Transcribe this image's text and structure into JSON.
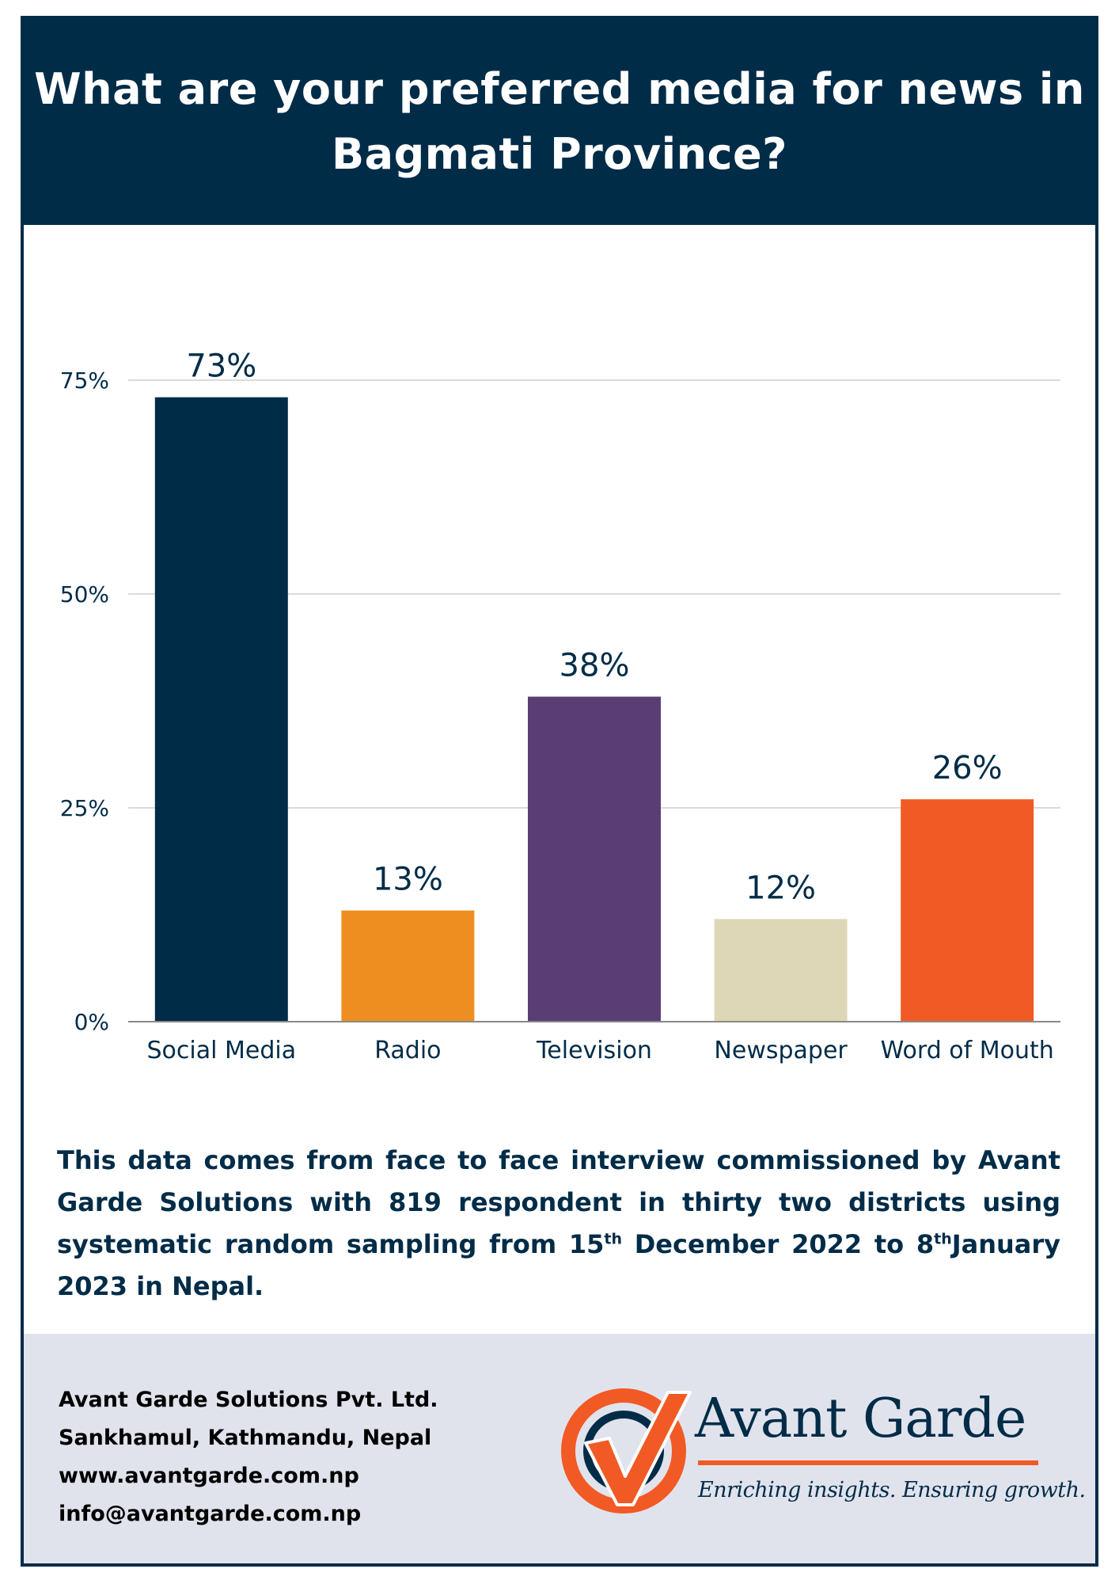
{
  "title": "What are your preferred media for news in Bagmati Province?",
  "chart_data": {
    "type": "bar",
    "title": "What are your preferred media for news in Bagmati Province?",
    "categories": [
      "Social Media",
      "Radio",
      "Television",
      "Newspaper",
      "Word of Mouth"
    ],
    "values": [
      73,
      13,
      38,
      12,
      26
    ],
    "value_labels": [
      "73%",
      "13%",
      "38%",
      "12%",
      "26%"
    ],
    "colors": [
      "#012c48",
      "#ef8e20",
      "#5a3e73",
      "#ded7b7",
      "#f15a24"
    ],
    "ylim": [
      0,
      75
    ],
    "yticks": [
      0,
      25,
      50,
      75
    ],
    "ytick_labels": [
      "0%",
      "25%",
      "50%",
      "75%"
    ],
    "grid": true,
    "legend": "none",
    "xlabel": "",
    "ylabel": ""
  },
  "note": {
    "part1": "This data comes from face to face interview commissioned by Avant Garde Solutions with 819 respondent in thirty two districts using systematic random sampling from 15",
    "sup1": "th",
    "part2": " December 2022 to 8",
    "sup2": "th",
    "part3": "January 2023 in Nepal."
  },
  "footer": {
    "company": "Avant Garde Solutions Pvt. Ltd.",
    "address": "Sankhamul, Kathmandu, Nepal",
    "website": "www.avantgarde.com.np",
    "email": "info@avantgarde.com.np"
  },
  "logo": {
    "icon": "checkmark-circle-logo-icon",
    "name": "Avant Garde",
    "tagline": "Enriching insights. Ensuring growth."
  },
  "colors": {
    "navy": "#012c48",
    "orange": "#f15a24",
    "footer_bg": "#e1e3ec"
  }
}
